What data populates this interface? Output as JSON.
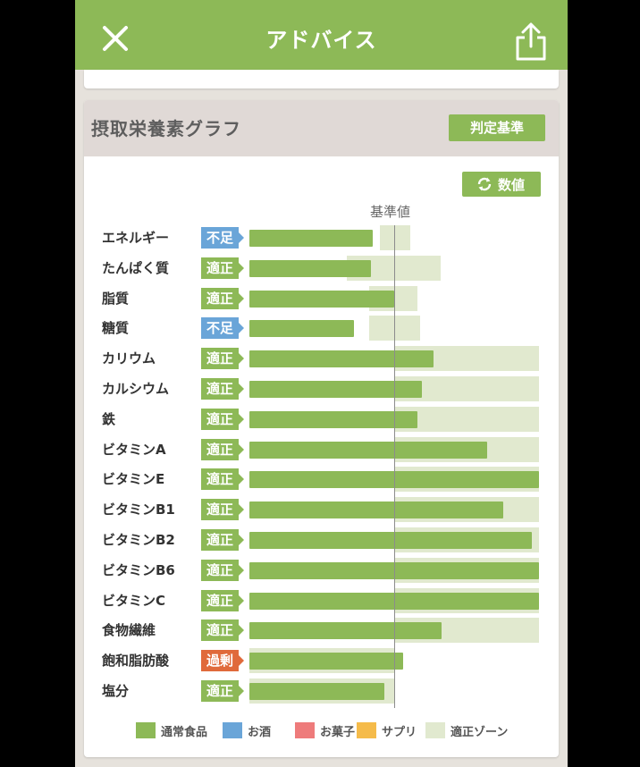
{
  "header": {
    "title": "アドバイス"
  },
  "card": {
    "title": "摂取栄養素グラフ",
    "judge_button": "判定基準",
    "value_button": "数値",
    "reference_label": "基準値"
  },
  "status_colors": {
    "適正": "#8db957",
    "不足": "#6aa5d8",
    "過剰": "#e06a3b"
  },
  "chart_data": {
    "type": "bar",
    "reference": 100,
    "scale_max": 200,
    "categories": [
      "エネルギー",
      "たんぱく質",
      "脂質",
      "糖質",
      "カリウム",
      "カルシウム",
      "鉄",
      "ビタミンA",
      "ビタミンE",
      "ビタミンB1",
      "ビタミンB2",
      "ビタミンB6",
      "ビタミンC",
      "食物繊維",
      "飽和脂肪酸",
      "塩分"
    ],
    "status": [
      "不足",
      "適正",
      "適正",
      "不足",
      "適正",
      "適正",
      "適正",
      "適正",
      "適正",
      "適正",
      "適正",
      "適正",
      "適正",
      "適正",
      "過剰",
      "適正"
    ],
    "values": [
      85,
      84,
      100,
      72,
      127,
      119,
      116,
      164,
      200,
      175,
      195,
      200,
      200,
      133,
      106,
      93
    ],
    "zones": [
      [
        90,
        111
      ],
      [
        67,
        132
      ],
      [
        83,
        116
      ],
      [
        83,
        118
      ],
      [
        100,
        200
      ],
      [
        100,
        200
      ],
      [
        100,
        200
      ],
      [
        100,
        200
      ],
      [
        100,
        200
      ],
      [
        100,
        200
      ],
      [
        100,
        200
      ],
      [
        100,
        200
      ],
      [
        100,
        200
      ],
      [
        100,
        200
      ],
      [
        0,
        100
      ],
      [
        0,
        100
      ]
    ],
    "legend": [
      {
        "name": "通常食品",
        "color": "#8db957"
      },
      {
        "name": "お酒",
        "color": "#6aa5d8"
      },
      {
        "name": "お菓子",
        "color": "#ee7b7b"
      },
      {
        "name": "サプリ",
        "color": "#f5bb4a"
      },
      {
        "name": "適正ゾーン",
        "color": "#e1e9cf"
      }
    ]
  }
}
